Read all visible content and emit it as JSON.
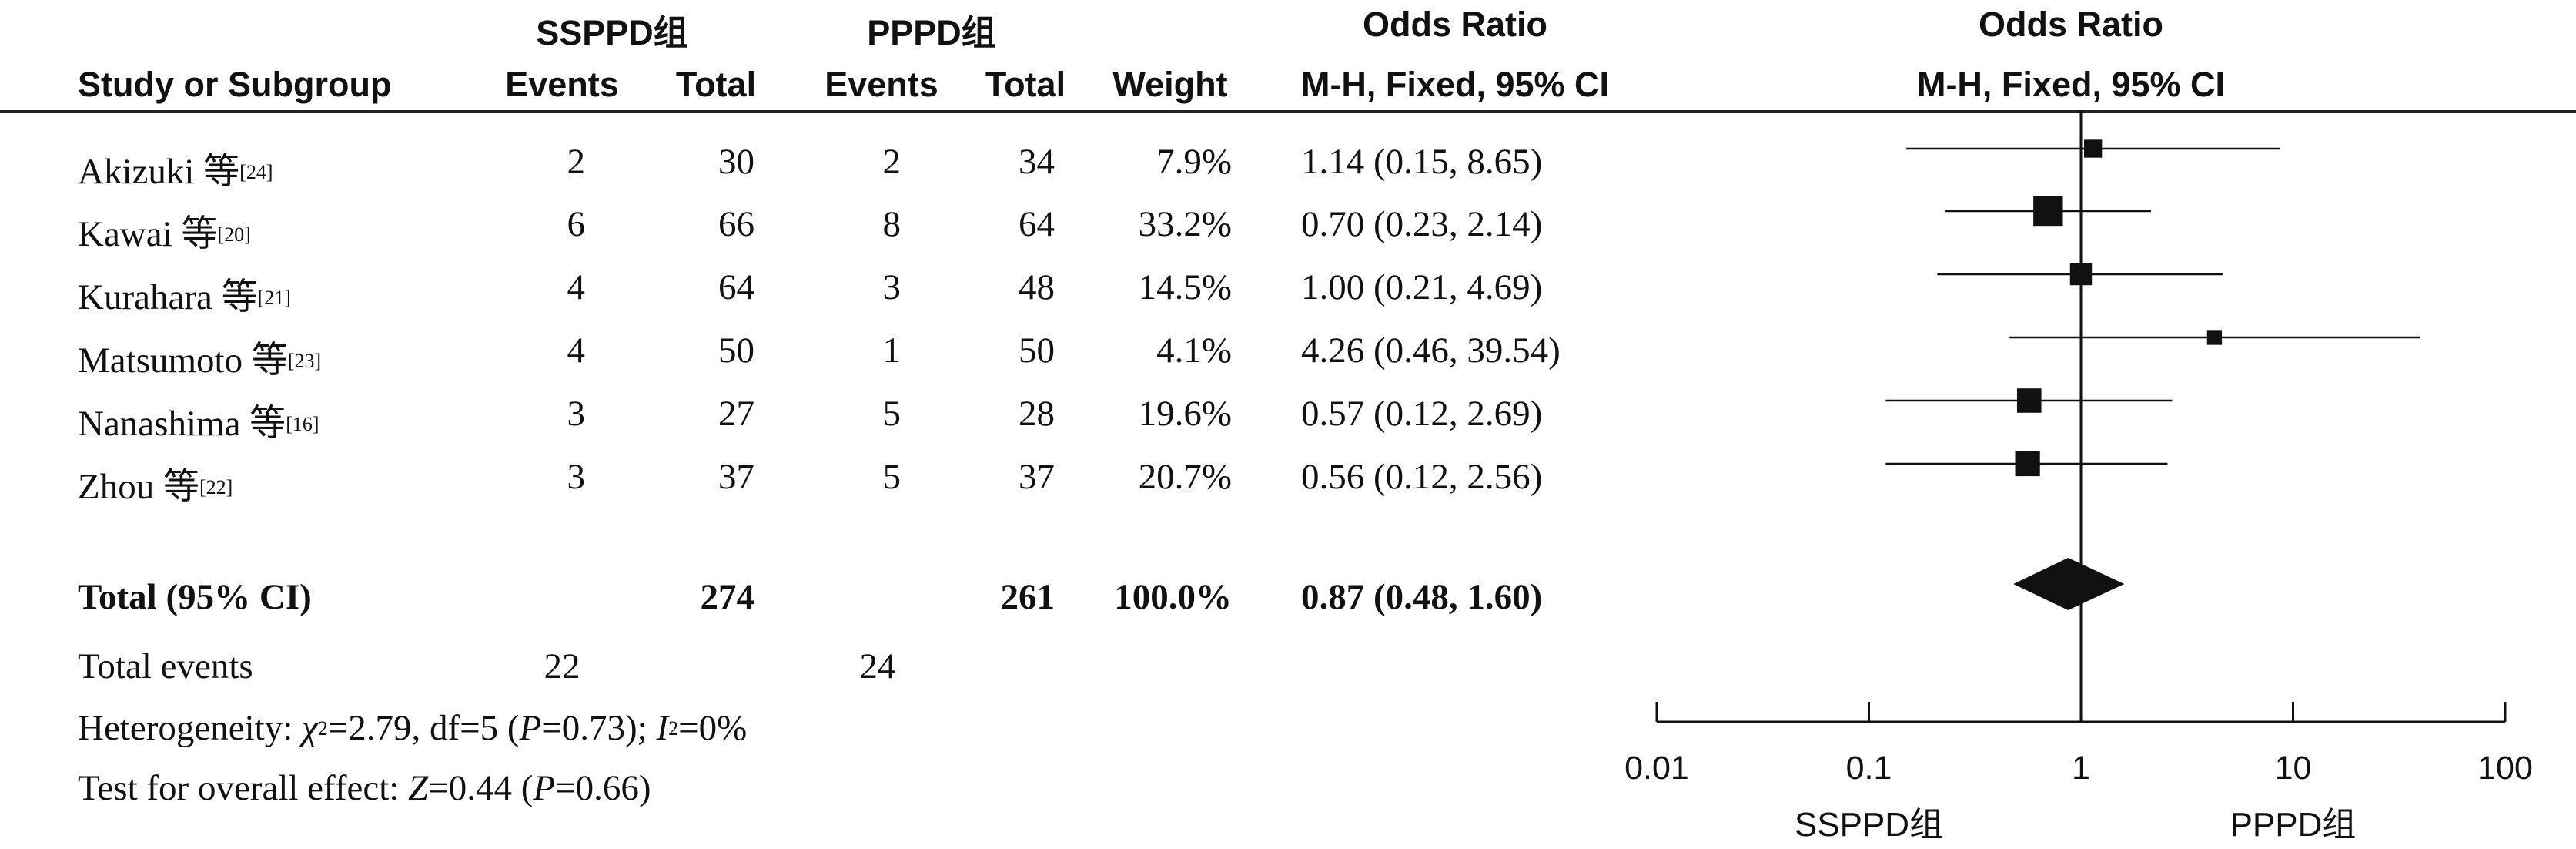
{
  "headers": {
    "group_left": "SSPPD组",
    "group_right": "PPPD组",
    "study": "Study or Subgroup",
    "events_left": "Events",
    "total_left": "Total",
    "events_right": "Events",
    "total_right": "Total",
    "weight": "Weight",
    "or_title": "Odds Ratio",
    "or_method": "M-H, Fixed, 95% CI",
    "plot_title": "Odds Ratio",
    "plot_method": "M-H, Fixed, 95% CI"
  },
  "studies": [
    {
      "name": "Akizuki 等",
      "ref": "[24]",
      "events_left": "2",
      "total_left": "30",
      "events_right": "2",
      "total_right": "34",
      "weight": "7.9%",
      "or_text": "1.14 (0.15, 8.65)"
    },
    {
      "name": "Kawai 等",
      "ref": "[20]",
      "events_left": "6",
      "total_left": "66",
      "events_right": "8",
      "total_right": "64",
      "weight": "33.2%",
      "or_text": "0.70 (0.23, 2.14)"
    },
    {
      "name": "Kurahara 等",
      "ref": "[21]",
      "events_left": "4",
      "total_left": "64",
      "events_right": "3",
      "total_right": "48",
      "weight": "14.5%",
      "or_text": "1.00 (0.21, 4.69)"
    },
    {
      "name": "Matsumoto 等",
      "ref": "[23]",
      "events_left": "4",
      "total_left": "50",
      "events_right": "1",
      "total_right": "50",
      "weight": "4.1%",
      "or_text": "4.26 (0.46, 39.54)"
    },
    {
      "name": "Nanashima 等",
      "ref": "[16]",
      "events_left": "3",
      "total_left": "27",
      "events_right": "5",
      "total_right": "28",
      "weight": "19.6%",
      "or_text": "0.57 (0.12, 2.69)"
    },
    {
      "name": "Zhou 等",
      "ref": "[22]",
      "events_left": "3",
      "total_left": "37",
      "events_right": "5",
      "total_right": "37",
      "weight": "20.7%",
      "or_text": "0.56 (0.12, 2.56)"
    }
  ],
  "total_row": {
    "label": "Total (95% CI)",
    "total_left": "274",
    "total_right": "261",
    "weight": "100.0%",
    "or_text": "0.87 (0.48, 1.60)"
  },
  "total_events": {
    "label": "Total events",
    "left": "22",
    "right": "24"
  },
  "heterogeneity": {
    "prefix": "Heterogeneity: ",
    "chi_sym": "χ",
    "chi_sup": "2",
    "chi_rest": "=2.79, df=5 (",
    "p_sym": "P",
    "p_rest": "=0.73); ",
    "i_sym": "I",
    "i_sup": "2",
    "i_rest": "=0%"
  },
  "overall_effect": {
    "prefix": "Test for overall effect: ",
    "z_sym": "Z",
    "z_rest": "=0.44 (",
    "p_sym": "P",
    "p_rest": "=0.66)"
  },
  "chart_data": {
    "type": "forest",
    "scale": "log",
    "xlim": [
      0.01,
      100
    ],
    "ticks": [
      0.01,
      0.1,
      1,
      10,
      100
    ],
    "tick_labels": [
      "0.01",
      "0.1",
      "1",
      "10",
      "100"
    ],
    "favours_left": "SSPPD组",
    "favours_right": "PPPD组",
    "reference_line": 1,
    "studies": [
      {
        "name": "Akizuki",
        "or": 1.14,
        "lower": 0.15,
        "upper": 8.65,
        "weight": 7.9
      },
      {
        "name": "Kawai",
        "or": 0.7,
        "lower": 0.23,
        "upper": 2.14,
        "weight": 33.2
      },
      {
        "name": "Kurahara",
        "or": 1.0,
        "lower": 0.21,
        "upper": 4.69,
        "weight": 14.5
      },
      {
        "name": "Matsumoto",
        "or": 4.26,
        "lower": 0.46,
        "upper": 39.54,
        "weight": 4.1
      },
      {
        "name": "Nanashima",
        "or": 0.57,
        "lower": 0.12,
        "upper": 2.69,
        "weight": 19.6
      },
      {
        "name": "Zhou",
        "or": 0.56,
        "lower": 0.12,
        "upper": 2.56,
        "weight": 20.7
      }
    ],
    "pooled": {
      "or": 0.87,
      "lower": 0.48,
      "upper": 1.6
    }
  }
}
